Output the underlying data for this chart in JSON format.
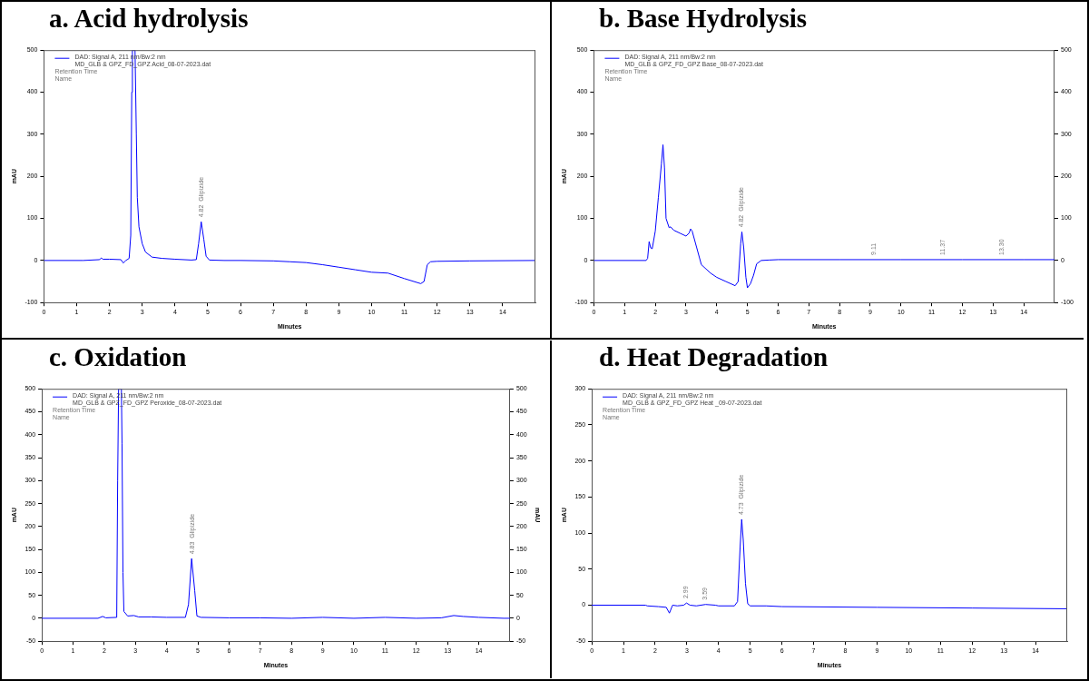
{
  "chart_data": [
    {
      "type": "line",
      "title": "a. Acid hydrolysis",
      "xlabel": "Minutes",
      "ylabel": "mAU",
      "xlim": [
        0,
        15
      ],
      "xticks": [
        0,
        1,
        2,
        3,
        4,
        5,
        6,
        7,
        8,
        9,
        10,
        11,
        12,
        13,
        14
      ],
      "ylim": [
        -100,
        500
      ],
      "yticks": [
        -100,
        0,
        100,
        200,
        300,
        400,
        500
      ],
      "grid": false,
      "legend": "top left",
      "marker": "none",
      "series": [
        {
          "name": "DAD: Signal A, 211 nm/Bw:2 nm\nMD_GLB & GPZ_FD_GPZ Acid_08-07-2023.dat",
          "color": "#0000ff",
          "x": [
            0,
            1.2,
            1.7,
            1.75,
            1.8,
            2.0,
            2.35,
            2.42,
            2.5,
            2.6,
            2.65,
            2.68,
            2.7,
            2.78,
            2.82,
            2.85,
            2.9,
            3.0,
            3.1,
            3.3,
            3.6,
            4.0,
            4.5,
            4.65,
            4.72,
            4.8,
            4.88,
            4.95,
            5.05,
            5.5,
            6,
            7,
            7.5,
            8,
            8.5,
            9,
            9.5,
            10,
            10.5,
            11,
            11.5,
            11.6,
            11.7,
            11.8,
            12,
            13,
            15
          ],
          "values": [
            0,
            0,
            2,
            6,
            3,
            3,
            2,
            -6,
            0,
            5,
            60,
            400,
            500,
            500,
            300,
            150,
            80,
            40,
            20,
            8,
            5,
            3,
            1,
            2,
            40,
            92,
            50,
            10,
            1,
            0,
            0,
            -1,
            -3,
            -5,
            -10,
            -16,
            -22,
            -28,
            -30,
            -43,
            -55,
            -50,
            -10,
            -3,
            -2,
            -1,
            0
          ]
        }
      ],
      "annotations": [
        "Retention Time",
        "Name",
        {
          "text": "4.82  Glipizide",
          "x": 4.82,
          "y": 92
        }
      ]
    },
    {
      "type": "line",
      "title": "b. Base Hydrolysis",
      "xlabel": "Minutes",
      "ylabel": "mAU",
      "xlim": [
        0,
        15
      ],
      "xticks": [
        0,
        1,
        2,
        3,
        4,
        5,
        6,
        7,
        8,
        9,
        10,
        11,
        12,
        13,
        14
      ],
      "ylim": [
        -100,
        500
      ],
      "yticks": [
        -100,
        0,
        100,
        200,
        300,
        400,
        500
      ],
      "y2lim": [
        -100,
        500
      ],
      "y2ticks": [
        -100,
        0,
        100,
        200,
        300,
        400,
        500
      ],
      "grid": false,
      "legend": "top left",
      "marker": "none",
      "series": [
        {
          "name": "DAD: Signal A, 211 nm/Bw:2 nm\nMD_GLB & GPZ_FD_GPZ Base_08-07-2023.dat",
          "color": "#0000ff",
          "x": [
            0,
            1.7,
            1.75,
            1.8,
            1.85,
            1.9,
            2.0,
            2.1,
            2.2,
            2.25,
            2.3,
            2.35,
            2.45,
            2.5,
            2.6,
            2.8,
            3.0,
            3.1,
            3.15,
            3.2,
            3.35,
            3.5,
            3.8,
            4.0,
            4.3,
            4.6,
            4.7,
            4.78,
            4.82,
            4.88,
            4.95,
            5.0,
            5.1,
            5.2,
            5.3,
            5.45,
            5.7,
            6,
            8,
            10,
            12,
            14,
            15
          ],
          "values": [
            0,
            0,
            5,
            45,
            30,
            28,
            70,
            150,
            230,
            275,
            220,
            100,
            78,
            80,
            72,
            65,
            58,
            65,
            75,
            70,
            30,
            -10,
            -30,
            -40,
            -50,
            -60,
            -50,
            40,
            68,
            30,
            -40,
            -65,
            -55,
            -35,
            -8,
            0,
            1,
            2,
            2,
            2,
            2,
            2,
            2
          ]
        }
      ],
      "annotations": [
        "Retention Time",
        "Name",
        {
          "text": "4.82  Glipizide",
          "x": 4.82,
          "y": 68
        },
        {
          "text": "9.11",
          "x": 9.11,
          "y": 2
        },
        {
          "text": "11.37",
          "x": 11.37,
          "y": 2
        },
        {
          "text": "13.30",
          "x": 13.3,
          "y": 2
        }
      ]
    },
    {
      "type": "line",
      "title": "c. Oxidation",
      "xlabel": "Minutes",
      "ylabel": "mAU",
      "y2label": "mAU",
      "xlim": [
        0,
        15
      ],
      "xticks": [
        0,
        1,
        2,
        3,
        4,
        5,
        6,
        7,
        8,
        9,
        10,
        11,
        12,
        13,
        14
      ],
      "ylim": [
        -50,
        500
      ],
      "yticks": [
        -50,
        0,
        50,
        100,
        150,
        200,
        250,
        300,
        350,
        400,
        450,
        500
      ],
      "y2lim": [
        -50,
        500
      ],
      "y2ticks": [
        -50,
        0,
        50,
        100,
        150,
        200,
        250,
        300,
        350,
        400,
        450,
        500
      ],
      "grid": false,
      "legend": "top left",
      "marker": "none",
      "series": [
        {
          "name": "DAD: Signal A, 211 nm/Bw:2 nm\nMD_GLB & GPZ_FD_GPZ Peroxide_08-07-2023.dat",
          "color": "#0000ff",
          "x": [
            0,
            1.8,
            1.95,
            2.05,
            2.4,
            2.43,
            2.46,
            2.55,
            2.57,
            2.6,
            2.63,
            2.75,
            2.95,
            3.1,
            3.5,
            4.0,
            4.6,
            4.7,
            4.8,
            4.9,
            4.97,
            5.1,
            6,
            7,
            8,
            9,
            10,
            11,
            12,
            12.8,
            13.2,
            13.5,
            14,
            14.8,
            15
          ],
          "values": [
            0,
            0,
            4,
            1,
            2,
            300,
            500,
            500,
            380,
            100,
            15,
            5,
            6,
            3,
            3,
            2,
            2,
            30,
            130,
            60,
            5,
            2,
            1,
            1,
            0,
            2,
            0,
            2,
            0,
            1,
            6,
            4,
            2,
            0,
            0
          ]
        }
      ],
      "annotations": [
        "Retention Time",
        "Name",
        {
          "text": "4.83  Glipizide",
          "x": 4.83,
          "y": 130
        }
      ]
    },
    {
      "type": "line",
      "title": "d. Heat Degradation",
      "xlabel": "Minutes",
      "ylabel": "mAU",
      "xlim": [
        0,
        15
      ],
      "xticks": [
        0,
        1,
        2,
        3,
        4,
        5,
        6,
        7,
        8,
        9,
        10,
        11,
        12,
        13,
        14
      ],
      "ylim": [
        -50,
        300
      ],
      "yticks": [
        -50,
        0,
        50,
        100,
        150,
        200,
        250,
        300
      ],
      "grid": false,
      "legend": "top left",
      "marker": "none",
      "series": [
        {
          "name": "DAD: Signal A, 211 nm/Bw:2 nm\nMD_GLB & GPZ_FD_GPZ Heat _09-07-2023.dat",
          "color": "#0000ff",
          "x": [
            0,
            1.7,
            1.75,
            2.1,
            2.35,
            2.45,
            2.55,
            2.7,
            2.9,
            2.99,
            3.1,
            3.3,
            3.59,
            3.9,
            4.0,
            4.5,
            4.6,
            4.68,
            4.73,
            4.78,
            4.85,
            4.92,
            5.0,
            5.5,
            6,
            9,
            12,
            15
          ],
          "values": [
            0,
            0,
            -1,
            -2,
            -3,
            -11,
            0,
            -1,
            0,
            3,
            0,
            -1,
            1,
            0,
            -1,
            -1,
            5,
            80,
            119,
            90,
            30,
            2,
            -1,
            -1,
            -2,
            -3,
            -4,
            -5
          ]
        }
      ],
      "annotations": [
        "Retention Time",
        "Name",
        {
          "text": "2.99",
          "x": 2.99,
          "y": 3
        },
        {
          "text": "3.59",
          "x": 3.59,
          "y": 1
        },
        {
          "text": "4.73  Glipizide",
          "x": 4.73,
          "y": 119
        }
      ]
    }
  ]
}
